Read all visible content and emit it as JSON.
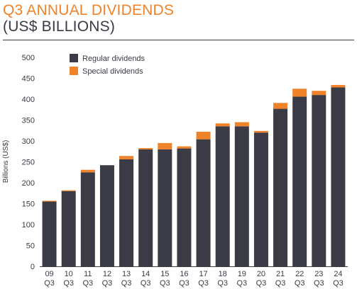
{
  "chart_data": {
    "type": "bar",
    "stacked": true,
    "title": "Q3 ANNUAL DIVIDENDS",
    "subtitle": "(US$ BILLIONS)",
    "ylabel": "Billions (US$)",
    "xlabel": "",
    "ylim": [
      0,
      500
    ],
    "yticks": [
      0,
      50,
      100,
      150,
      200,
      250,
      300,
      350,
      400,
      450,
      500
    ],
    "grid": false,
    "legend_position": "top-left",
    "categories": [
      [
        "09",
        "Q3"
      ],
      [
        "10",
        "Q3"
      ],
      [
        "11",
        "Q3"
      ],
      [
        "12",
        "Q3"
      ],
      [
        "13",
        "Q3"
      ],
      [
        "14",
        "Q3"
      ],
      [
        "15",
        "Q3"
      ],
      [
        "16",
        "Q3"
      ],
      [
        "17",
        "Q3"
      ],
      [
        "18",
        "Q3"
      ],
      [
        "19",
        "Q3"
      ],
      [
        "20",
        "Q3"
      ],
      [
        "21",
        "Q3"
      ],
      [
        "22",
        "Q3"
      ],
      [
        "23",
        "Q3"
      ],
      [
        "24",
        "Q3"
      ]
    ],
    "series": [
      {
        "name": "Regular dividends",
        "color": "#3a3b44",
        "values": [
          155,
          180,
          225,
          242,
          256,
          280,
          280,
          282,
          304,
          335,
          335,
          320,
          377,
          406,
          410,
          428
        ]
      },
      {
        "name": "Special dividends",
        "color": "#F0832A",
        "values": [
          2,
          2,
          6,
          0,
          8,
          3,
          15,
          5,
          18,
          7,
          10,
          4,
          14,
          19,
          10,
          6
        ]
      }
    ]
  }
}
